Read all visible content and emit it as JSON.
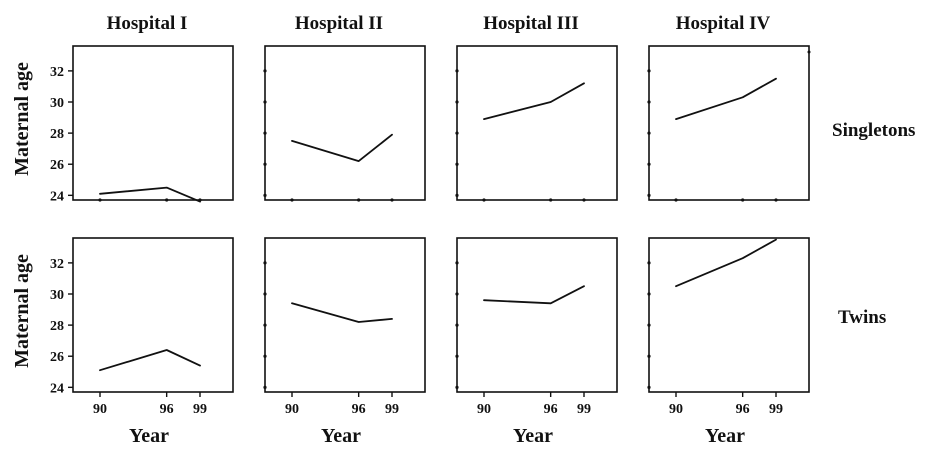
{
  "columns": [
    "Hospital I",
    "Hospital II",
    "Hospital III",
    "Hospital IV"
  ],
  "rows": [
    "Singletons",
    "Twins"
  ],
  "ylabel": "Maternal age",
  "xlabel": "Year",
  "chart_data": {
    "type": "line",
    "layout": "small-multiples grid (2 rows x 4 columns)",
    "title": "",
    "xlabel": "Year",
    "ylabel": "Maternal age",
    "x_ticks": [
      "90",
      "96",
      "99"
    ],
    "y_ticks": [
      "24",
      "26",
      "28",
      "30",
      "32"
    ],
    "xlim": [
      89,
      100
    ],
    "ylim": [
      23.7,
      33.6
    ],
    "grid": false,
    "panels": [
      {
        "row": "Singletons",
        "column": "Hospital I",
        "x": [
          "90",
          "96",
          "99"
        ],
        "values": [
          24.1,
          24.5,
          23.6
        ]
      },
      {
        "row": "Singletons",
        "column": "Hospital II",
        "x": [
          "90",
          "96",
          "99"
        ],
        "values": [
          27.5,
          26.2,
          27.9
        ]
      },
      {
        "row": "Singletons",
        "column": "Hospital III",
        "x": [
          "90",
          "96",
          "99"
        ],
        "values": [
          28.9,
          30.0,
          31.2
        ]
      },
      {
        "row": "Singletons",
        "column": "Hospital IV",
        "x": [
          "90",
          "96",
          "99"
        ],
        "values": [
          28.9,
          30.3,
          31.5
        ]
      },
      {
        "row": "Twins",
        "column": "Hospital I",
        "x": [
          "90",
          "96",
          "99"
        ],
        "values": [
          25.1,
          26.4,
          25.4
        ]
      },
      {
        "row": "Twins",
        "column": "Hospital II",
        "x": [
          "90",
          "96",
          "99"
        ],
        "values": [
          29.4,
          28.2,
          28.4
        ]
      },
      {
        "row": "Twins",
        "column": "Hospital III",
        "x": [
          "90",
          "96",
          "99"
        ],
        "values": [
          29.6,
          29.4,
          30.5
        ]
      },
      {
        "row": "Twins",
        "column": "Hospital IV",
        "x": [
          "90",
          "96",
          "99"
        ],
        "values": [
          30.5,
          32.3,
          33.5
        ]
      }
    ]
  }
}
